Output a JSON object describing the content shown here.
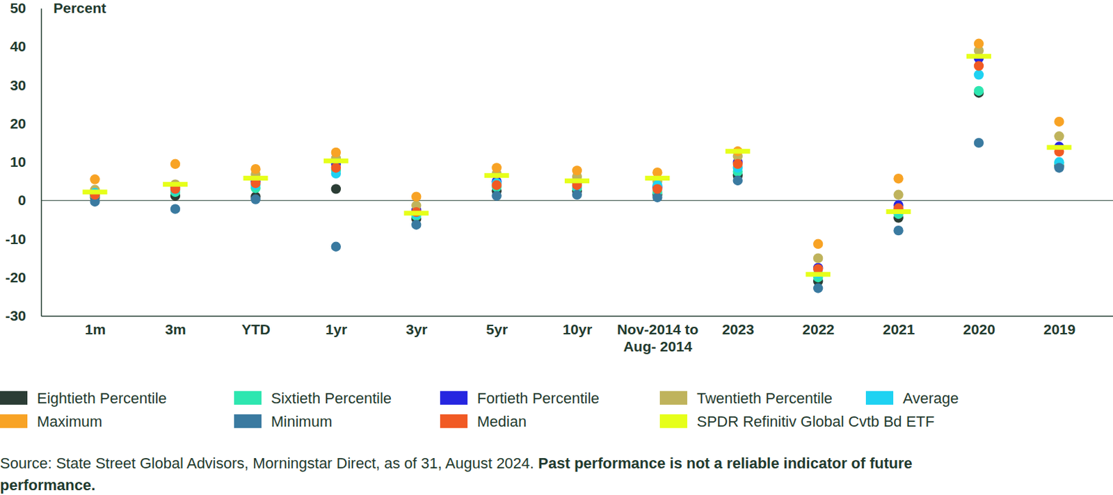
{
  "chart_data": {
    "type": "scatter",
    "ylabel": "Percent",
    "categories": [
      "1m",
      "3m",
      "YTD",
      "1yr",
      "3yr",
      "5yr",
      "10yr",
      "Nov-2014 to Aug- 2014",
      "2023",
      "2022",
      "2021",
      "2020",
      "2019"
    ],
    "ylim": [
      -30,
      50
    ],
    "yticks": [
      -30,
      -20,
      -10,
      0,
      10,
      20,
      30,
      40,
      50
    ],
    "grid": false,
    "legend": "bottom",
    "series": [
      {
        "name": "Eightieth Percentile",
        "color": "#2b3d35",
        "marker": "circle",
        "values": [
          0.8,
          1.2,
          1.0,
          3.0,
          -4.8,
          2.5,
          2.5,
          1.5,
          6.5,
          -21.0,
          -4.5,
          28.0,
          9.0
        ]
      },
      {
        "name": "Sixtieth Percentile",
        "color": "#2ee6b0",
        "marker": "circle",
        "values": [
          1.2,
          2.2,
          3.2,
          7.8,
          -4.0,
          3.5,
          3.2,
          2.2,
          7.5,
          -20.0,
          -3.5,
          28.5,
          9.8
        ]
      },
      {
        "name": "Fortieth Percentile",
        "color": "#2626e0",
        "marker": "circle",
        "values": [
          1.6,
          3.4,
          5.0,
          9.5,
          -2.5,
          5.0,
          4.5,
          3.5,
          10.0,
          -17.5,
          -1.2,
          37.0,
          14.0
        ]
      },
      {
        "name": "Twentieth Percentile",
        "color": "#bfb35c",
        "marker": "circle",
        "values": [
          2.8,
          4.2,
          6.8,
          11.0,
          -1.3,
          7.0,
          6.2,
          5.0,
          11.5,
          -15.0,
          1.5,
          39.0,
          16.7
        ]
      },
      {
        "name": "Average",
        "color": "#1fd2f2",
        "marker": "circle",
        "values": [
          2.0,
          2.8,
          4.0,
          7.0,
          -3.5,
          4.5,
          3.8,
          4.0,
          8.5,
          -19.0,
          -2.5,
          32.7,
          10.0
        ]
      },
      {
        "name": "Maximum",
        "color": "#f8a325",
        "marker": "circle",
        "values": [
          5.5,
          9.5,
          8.2,
          12.5,
          1.0,
          8.5,
          7.8,
          7.3,
          12.8,
          -11.3,
          5.7,
          40.8,
          20.5
        ]
      },
      {
        "name": "Minimum",
        "color": "#3a7aa0",
        "marker": "circle",
        "values": [
          -0.3,
          -2.2,
          0.3,
          -12.0,
          -6.3,
          1.2,
          1.5,
          0.8,
          5.2,
          -22.8,
          -7.8,
          15.0,
          8.5
        ]
      },
      {
        "name": "Median",
        "color": "#f15a24",
        "marker": "circle",
        "values": [
          1.5,
          3.0,
          4.5,
          8.5,
          -3.0,
          4.0,
          4.0,
          3.0,
          9.5,
          -17.8,
          -2.0,
          35.0,
          12.7
        ]
      },
      {
        "name": "SPDR Refinitiv Global Cvtb Bd ETF",
        "color": "#e6ff1a",
        "marker": "dash",
        "values": [
          2.2,
          4.2,
          5.8,
          10.3,
          -3.3,
          6.5,
          5.1,
          5.8,
          12.8,
          -19.2,
          -2.9,
          37.5,
          13.8
        ]
      }
    ],
    "source": "Source: State Street Global Advisors, Morningstar Direct, as of 31, August 2024.",
    "disclaimer": "Past performance is not a reliable indicator of future performance."
  }
}
